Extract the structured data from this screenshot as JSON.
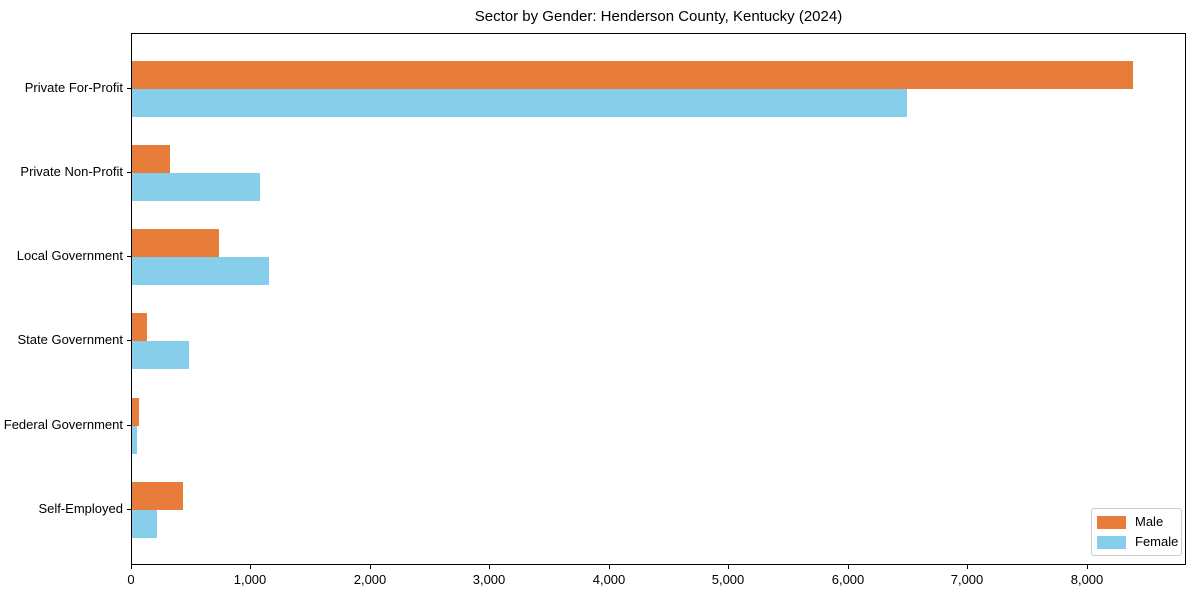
{
  "title": "Sector by Gender: Henderson County, Kentucky (2024)",
  "chart_data": {
    "type": "bar",
    "orientation": "horizontal",
    "title": "Sector by Gender: Henderson County, Kentucky (2024)",
    "xlabel": "",
    "ylabel": "",
    "categories": [
      "Private For-Profit",
      "Private Non-Profit",
      "Local Government",
      "State Government",
      "Federal Government",
      "Self-Employed"
    ],
    "series": [
      {
        "name": "Male",
        "color": "#e87d3b",
        "values": [
          8390,
          315,
          730,
          125,
          60,
          430
        ]
      },
      {
        "name": "Female",
        "color": "#87ceeb",
        "values": [
          6500,
          1070,
          1150,
          480,
          40,
          210
        ]
      }
    ],
    "xlim": [
      0,
      8830
    ],
    "xticks": [
      0,
      1000,
      2000,
      3000,
      4000,
      5000,
      6000,
      7000,
      8000
    ],
    "xtick_labels": [
      "0",
      "1,000",
      "2,000",
      "3,000",
      "4,000",
      "5,000",
      "6,000",
      "7,000",
      "8,000"
    ],
    "grid": false,
    "legend_position": "lower right"
  }
}
